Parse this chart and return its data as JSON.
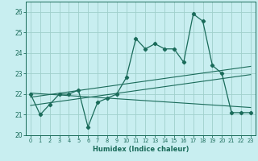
{
  "title": "",
  "xlabel": "Humidex (Indice chaleur)",
  "ylabel": "",
  "bg_color": "#c8eef0",
  "grid_color": "#a0d0cc",
  "line_color": "#1a6b5a",
  "xlim": [
    -0.5,
    23.5
  ],
  "ylim": [
    20.0,
    26.5
  ],
  "yticks": [
    20,
    21,
    22,
    23,
    24,
    25,
    26
  ],
  "xticks": [
    0,
    1,
    2,
    3,
    4,
    5,
    6,
    7,
    8,
    9,
    10,
    11,
    12,
    13,
    14,
    15,
    16,
    17,
    18,
    19,
    20,
    21,
    22,
    23
  ],
  "series": [
    22.0,
    21.0,
    21.5,
    22.0,
    22.0,
    22.2,
    20.4,
    21.6,
    21.8,
    22.0,
    22.8,
    24.7,
    24.2,
    24.45,
    24.2,
    24.2,
    23.55,
    25.9,
    25.55,
    23.4,
    23.0,
    21.1,
    21.1,
    21.1
  ],
  "trend1_x": [
    0,
    23
  ],
  "trend1_y": [
    21.85,
    23.35
  ],
  "trend2_x": [
    0,
    23
  ],
  "trend2_y": [
    21.45,
    22.95
  ],
  "trend3_x": [
    0,
    23
  ],
  "trend3_y": [
    22.05,
    21.35
  ]
}
